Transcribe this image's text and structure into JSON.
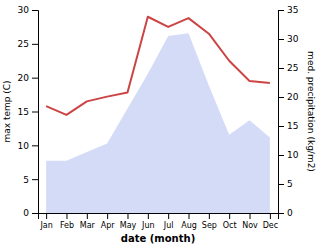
{
  "chart_data": {
    "type": "line",
    "categories": [
      "Jan",
      "Feb",
      "Mar",
      "Apr",
      "May",
      "Jun",
      "Jul",
      "Aug",
      "Sep",
      "Oct",
      "Nov",
      "Dec"
    ],
    "xlabel": "date (month)",
    "ylabel": "max temp (C)",
    "y2label": "med. precipitation (kg/m2)",
    "series": [
      {
        "type": "line",
        "color": "#cc4444",
        "values": [
          15.8,
          14.5,
          16.5,
          17.2,
          17.8,
          29.0,
          27.5,
          28.8,
          26.5,
          22.5,
          19.5,
          19.2
        ]
      },
      {
        "type": "area",
        "color": "#b0bef0",
        "axis": "y2",
        "values": [
          9.0,
          9.0,
          10.5,
          12.0,
          18.0,
          24.0,
          30.5,
          31.0,
          22.0,
          13.5,
          16.0,
          13.0
        ]
      }
    ],
    "ylim": [
      0,
      30
    ],
    "yticks": [
      0,
      5,
      10,
      15,
      20,
      25,
      30
    ],
    "y2lim": [
      0,
      35
    ],
    "y2ticks": [
      0,
      5,
      10,
      15,
      20,
      25,
      30,
      35
    ]
  }
}
